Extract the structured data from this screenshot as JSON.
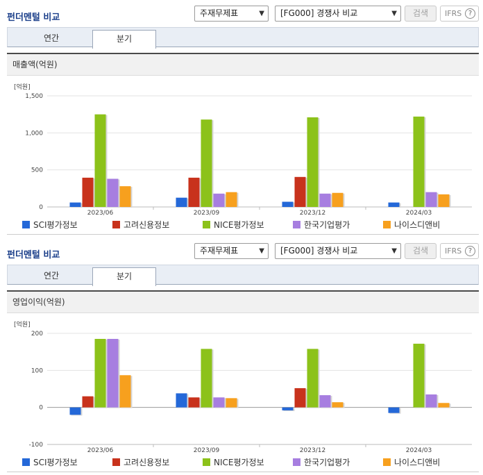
{
  "sections": [
    {
      "title": "펀더멘털 비교",
      "select1": "주재무제표",
      "select2": "[FG000] 경쟁사 비교",
      "search_label": "검색",
      "ifrs_label": "IFRS",
      "help_label": "?",
      "tabs": [
        {
          "label": "연간"
        },
        {
          "label": "분기"
        }
      ],
      "chart_title": "매출액(억원)"
    },
    {
      "title": "펀더멘털 비교",
      "select1": "주재무제표",
      "select2": "[FG000] 경쟁사 비교",
      "search_label": "검색",
      "ifrs_label": "IFRS",
      "help_label": "?",
      "tabs": [
        {
          "label": "연간"
        },
        {
          "label": "분기"
        }
      ],
      "chart_title": "영업이익(억원)"
    }
  ],
  "chart_data": [
    {
      "type": "bar",
      "title": "매출액(억원)",
      "unit_label": "[억원]",
      "categories": [
        "2023/06",
        "2023/09",
        "2023/12",
        "2024/03"
      ],
      "ylim": [
        0,
        1500
      ],
      "yticks": [
        0,
        500,
        1000,
        1500
      ],
      "ytick_labels": [
        "0",
        "500",
        "1,000",
        "1,500"
      ],
      "grid": true,
      "legend_position": "bottom",
      "series": [
        {
          "name": "SCI평가정보",
          "color": "#2468d8",
          "values": [
            60,
            125,
            70,
            60
          ]
        },
        {
          "name": "고려신용정보",
          "color": "#c8321c",
          "values": [
            395,
            395,
            405,
            null
          ]
        },
        {
          "name": "NICE평가정보",
          "color": "#8cc21a",
          "values": [
            1250,
            1180,
            1210,
            1220
          ]
        },
        {
          "name": "한국기업평가",
          "color": "#a77ee0",
          "values": [
            380,
            180,
            180,
            200
          ]
        },
        {
          "name": "나이스디앤비",
          "color": "#f7a01e",
          "values": [
            280,
            200,
            190,
            170
          ]
        }
      ]
    },
    {
      "type": "bar",
      "title": "영업이익(억원)",
      "unit_label": "[억원]",
      "categories": [
        "2023/06",
        "2023/09",
        "2023/12",
        "2024/03"
      ],
      "ylim": [
        -100,
        200
      ],
      "yticks": [
        -100,
        0,
        100,
        200
      ],
      "ytick_labels": [
        "-100",
        "0",
        "100",
        "200"
      ],
      "grid": true,
      "legend_position": "bottom",
      "series": [
        {
          "name": "SCI평가정보",
          "color": "#2468d8",
          "values": [
            -20,
            38,
            -8,
            -15
          ]
        },
        {
          "name": "고려신용정보",
          "color": "#c8321c",
          "values": [
            30,
            27,
            52,
            null
          ]
        },
        {
          "name": "NICE평가정보",
          "color": "#8cc21a",
          "values": [
            185,
            158,
            158,
            172
          ]
        },
        {
          "name": "한국기업평가",
          "color": "#a77ee0",
          "values": [
            185,
            27,
            33,
            35
          ]
        },
        {
          "name": "나이스디앤비",
          "color": "#f7a01e",
          "values": [
            87,
            25,
            14,
            12
          ]
        }
      ]
    }
  ]
}
